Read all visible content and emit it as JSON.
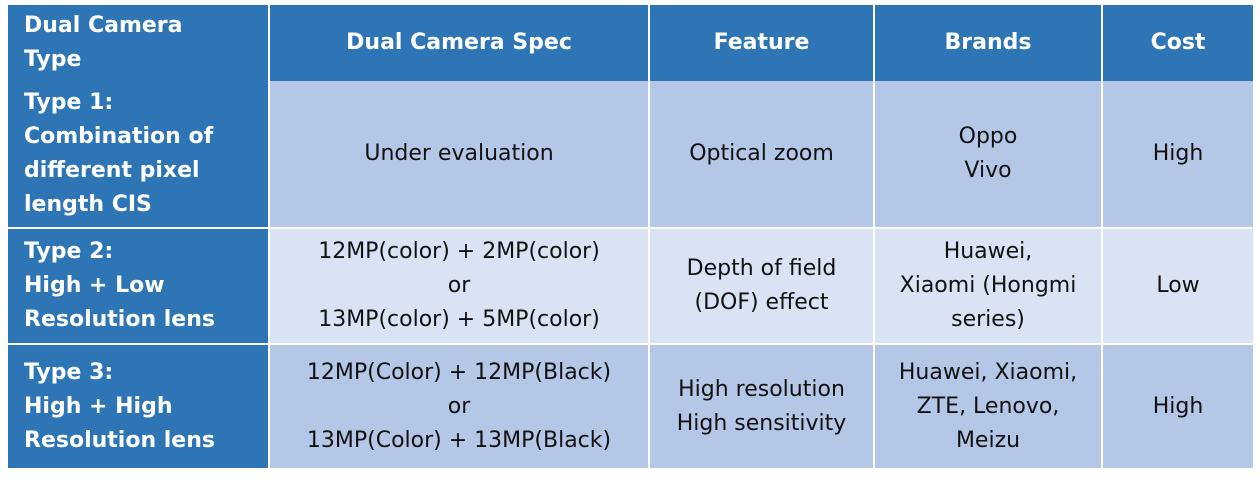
{
  "headers": [
    "Dual Camera\nType",
    "Dual Camera Spec",
    "Feature",
    "Brands",
    "Cost"
  ],
  "rows": [
    {
      "type": [
        "Type 1:",
        "Combination of",
        "different pixel",
        "length CIS"
      ],
      "spec": [
        "Under evaluation"
      ],
      "feature": [
        "Optical zoom"
      ],
      "brands": [
        "Oppo",
        "Vivo"
      ],
      "cost": "High"
    },
    {
      "type": [
        "Type 2:",
        "High + Low",
        "Resolution lens"
      ],
      "spec": [
        "12MP(color) + 2MP(color)",
        "or",
        "13MP(color) + 5MP(color)"
      ],
      "feature": [
        "Depth of field",
        "(DOF) effect"
      ],
      "brands": [
        "Huawei,",
        "Xiaomi (Hongmi",
        "series)"
      ],
      "cost": "Low"
    },
    {
      "type": [
        "Type 3:",
        "High + High",
        "Resolution lens"
      ],
      "spec": [
        "12MP(Color) + 12MP(Black)",
        "or",
        "13MP(Color) + 13MP(Black)"
      ],
      "feature": [
        "High resolution",
        "High sensitivity"
      ],
      "brands": [
        "Huawei, Xiaomi,",
        "ZTE, Lenovo,",
        "Meizu"
      ],
      "cost": "High"
    }
  ],
  "colors": {
    "header_bg": "#2e75b6",
    "row_dark_bg": "#b4c7e7",
    "row_light_bg": "#dae3f3",
    "header_text": "#ffffff",
    "body_text": "#111111"
  }
}
